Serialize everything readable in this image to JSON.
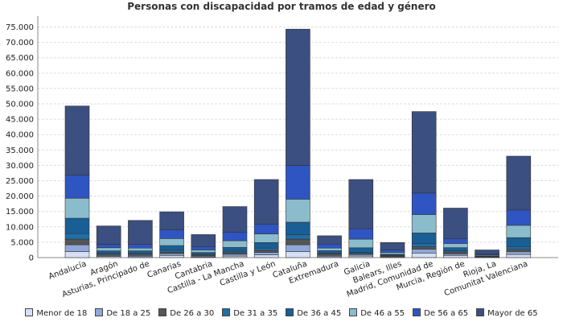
{
  "chart_data": {
    "type": "bar",
    "stacked": true,
    "title": "Personas con discapacidad por tramos de edad y género",
    "xlabel": "",
    "ylabel": "",
    "ylim": [
      0,
      77500
    ],
    "yticks": [
      0,
      5000,
      10000,
      15000,
      20000,
      25000,
      30000,
      35000,
      40000,
      45000,
      50000,
      55000,
      60000,
      65000,
      70000,
      75000
    ],
    "ytick_labels": [
      "0",
      "5.000",
      "10.000",
      "15.000",
      "20.000",
      "25.000",
      "30.000",
      "35.000",
      "40.000",
      "45.000",
      "50.000",
      "55.000",
      "60.000",
      "65.000",
      "70.000",
      "75.000"
    ],
    "grid": true,
    "legend_position": "bottom",
    "categories": [
      "Andalucía",
      "Aragón",
      "Asturias, Principado de",
      "Canarias",
      "Cantabria",
      "Castilla - La Mancha",
      "Castilla y León",
      "Cataluña",
      "Extremadura",
      "Galicia",
      "Balears, Illes",
      "Madrid, Comunidad de",
      "Murcia, Región de",
      "Rioja, La",
      "Comunitat Valenciana"
    ],
    "series": [
      {
        "name": "Menor de 18",
        "color": "#d6dff5",
        "values": [
          2000,
          400,
          300,
          700,
          200,
          500,
          900,
          2000,
          300,
          500,
          200,
          1500,
          700,
          100,
          1000
        ]
      },
      {
        "name": "De 18 a 25",
        "color": "#8fa8d8",
        "values": [
          2200,
          300,
          400,
          600,
          300,
          600,
          800,
          2200,
          400,
          500,
          200,
          1200,
          500,
          100,
          900
        ]
      },
      {
        "name": "De 26 a 30",
        "color": "#555555",
        "values": [
          1800,
          400,
          400,
          500,
          300,
          500,
          700,
          1800,
          500,
          300,
          200,
          800,
          600,
          100,
          800
        ]
      },
      {
        "name": "De 31 a 35",
        "color": "#1f6fa8",
        "values": [
          1800,
          300,
          400,
          600,
          300,
          500,
          700,
          1500,
          300,
          400,
          200,
          1000,
          400,
          100,
          800
        ]
      },
      {
        "name": "De 36 a 45",
        "color": "#1a5e96",
        "values": [
          5000,
          800,
          700,
          1500,
          600,
          1200,
          1800,
          4000,
          800,
          1500,
          300,
          3500,
          1000,
          200,
          3000
        ]
      },
      {
        "name": "De 46 a 55",
        "color": "#8bbccc",
        "values": [
          6500,
          1000,
          900,
          2300,
          800,
          2200,
          2800,
          7500,
          800,
          2800,
          600,
          6000,
          1400,
          300,
          4000
        ]
      },
      {
        "name": "De 56 a 65",
        "color": "#2f55c3",
        "values": [
          7500,
          1100,
          1200,
          2800,
          1000,
          2800,
          3200,
          11000,
          1300,
          3400,
          800,
          7000,
          1500,
          400,
          5000
        ]
      },
      {
        "name": "Mayor de 65",
        "color": "#3b4f80",
        "values": [
          22500,
          6000,
          7800,
          5900,
          4000,
          8300,
          14500,
          44300,
          2700,
          16000,
          2400,
          26500,
          10000,
          1200,
          17500
        ]
      }
    ]
  }
}
